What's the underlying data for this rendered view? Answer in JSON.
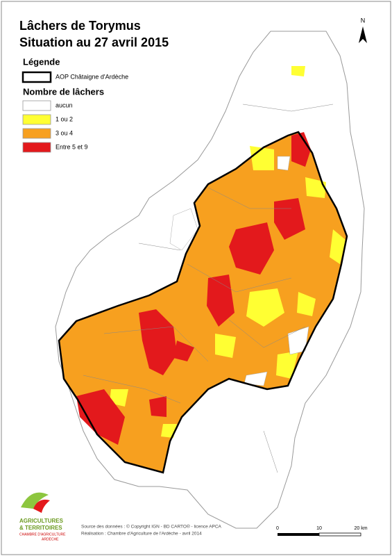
{
  "title": {
    "line1": "Lâchers de Torymus",
    "line2": "Situation au 27 avril 2015"
  },
  "legend": {
    "heading": "Légende",
    "boundary": "AOP Châtaigne d'Ardèche",
    "subheading": "Nombre de lâchers",
    "classes": [
      {
        "label": "aucun",
        "color": "#ffffff"
      },
      {
        "label": "1 ou 2",
        "color": "#ffff33"
      },
      {
        "label": "3 ou 4",
        "color": "#f7a01f"
      },
      {
        "label": "Entre 5 et 9",
        "color": "#e3191c"
      }
    ]
  },
  "north": "N",
  "scale": {
    "labels": [
      "0",
      "10",
      "20 km"
    ]
  },
  "source": {
    "line1": "Source des données : © Copyright IGN - BD CARTO® - licence APCA",
    "line2": "Réalisation : Chambre d'Agriculture de l'Ardèche - avril 2014"
  },
  "logo": {
    "line1": "AGRICULTURES",
    "line2": "& TERRITOIRES",
    "line3": "CHAMBRE D'AGRICULTURE",
    "line4": "ARDÈCHE"
  }
}
